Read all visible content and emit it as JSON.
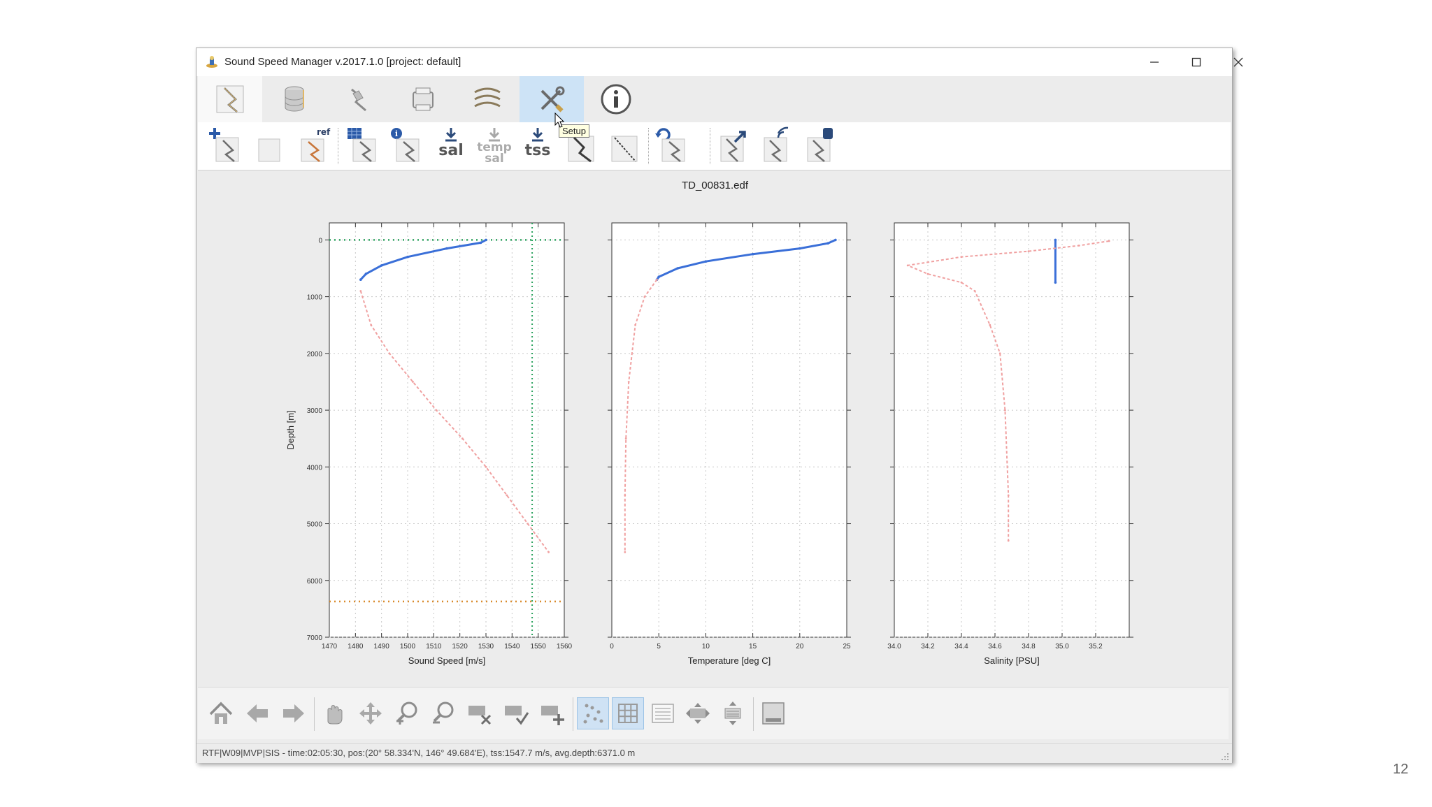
{
  "window": {
    "title": "Sound Speed Manager v.2017.1.0 [project: default]",
    "controls": {
      "minimize": "–",
      "maximize": "☐",
      "close": "✕"
    }
  },
  "main_tabs": [
    {
      "icon": "profile-editor-icon",
      "state": "selected"
    },
    {
      "icon": "database-icon"
    },
    {
      "icon": "survey-data-icon"
    },
    {
      "icon": "server-icon"
    },
    {
      "icon": "refraction-monitor-icon"
    },
    {
      "icon": "setup-tools-icon",
      "state": "hover"
    },
    {
      "icon": "info-icon"
    }
  ],
  "tooltip": "Setup",
  "toolbar": {
    "ref_badge": "ref",
    "sal_label": "sal",
    "temp_sal_label": [
      "temp",
      "sal"
    ],
    "tss_label": "tss"
  },
  "plot": {
    "title": "TD_00831.edf",
    "depth_label": "Depth [m]",
    "depth_ticks": [
      "0",
      "1000",
      "2000",
      "3000",
      "4000",
      "5000",
      "6000",
      "7000"
    ],
    "depth_range": [
      -300,
      7000
    ],
    "panels": [
      {
        "xlabel": "Sound Speed [m/s]",
        "xlim": [
          1470,
          1560
        ],
        "ticks": [
          "1470",
          "1480",
          "1490",
          "1500",
          "1510",
          "1520",
          "1530",
          "1540",
          "1550",
          "1560"
        ]
      },
      {
        "xlabel": "Temperature [deg C]",
        "xlim": [
          0,
          25
        ],
        "ticks": [
          "0",
          "5",
          "10",
          "15",
          "20",
          "25"
        ]
      },
      {
        "xlabel": "Salinity [PSU]",
        "xlim": [
          34.0,
          35.4
        ],
        "ticks": [
          "34.0",
          "34.2",
          "34.4",
          "34.6",
          "34.8",
          "35.0",
          "35.2"
        ]
      }
    ],
    "colors": {
      "valid": "#3a6fd8",
      "flagged": "#f0a0a0",
      "tss_line": "#2ca25f",
      "seafloor_line": "#d98a2b"
    },
    "tss_value": 1547.7,
    "avg_depth": 6371.0
  },
  "chart_data": [
    {
      "type": "line",
      "xlabel": "Sound Speed [m/s]",
      "ylabel": "Depth [m]",
      "xlim": [
        1470,
        1560
      ],
      "ylim": [
        7000,
        -300
      ],
      "grid": true,
      "series": [
        {
          "values": [
            [
              1530,
              0
            ],
            [
              1528,
              50
            ],
            [
              1515,
              150
            ],
            [
              1500,
              300
            ],
            [
              1490,
              450
            ],
            [
              1484,
              600
            ],
            [
              1482,
              700
            ]
          ]
        },
        {
          "values": [
            [
              1482,
              900
            ],
            [
              1486,
              1500
            ],
            [
              1493,
              2000
            ],
            [
              1502,
              2500
            ],
            [
              1511,
              3000
            ],
            [
              1521,
              3500
            ],
            [
              1530,
              4000
            ],
            [
              1538,
              4500
            ],
            [
              1546,
              5000
            ],
            [
              1554,
              5500
            ]
          ]
        }
      ],
      "reference_lines": [
        {
          "orientation": "vertical",
          "value": 1547.7
        },
        {
          "orientation": "horizontal",
          "value": 0
        },
        {
          "orientation": "horizontal",
          "value": 6371.0
        }
      ]
    },
    {
      "type": "line",
      "xlabel": "Temperature [deg C]",
      "ylabel": "Depth [m]",
      "xlim": [
        0,
        25
      ],
      "ylim": [
        7000,
        -300
      ],
      "grid": true,
      "series": [
        {
          "values": [
            [
              23.8,
              0
            ],
            [
              23,
              60
            ],
            [
              20,
              150
            ],
            [
              15,
              250
            ],
            [
              10,
              380
            ],
            [
              7,
              500
            ],
            [
              5,
              650
            ],
            [
              4.8,
              700
            ]
          ]
        },
        {
          "values": [
            [
              4.8,
              700
            ],
            [
              3.5,
              1000
            ],
            [
              2.5,
              1500
            ],
            [
              1.8,
              2500
            ],
            [
              1.5,
              3500
            ],
            [
              1.4,
              4500
            ],
            [
              1.4,
              5500
            ]
          ]
        }
      ]
    },
    {
      "type": "line",
      "xlabel": "Salinity [PSU]",
      "ylabel": "Depth [m]",
      "xlim": [
        34.0,
        35.4
      ],
      "ylim": [
        7000,
        -300
      ],
      "grid": true,
      "series": [
        {
          "values": [
            [
              34.96,
              0
            ],
            [
              34.96,
              750
            ]
          ]
        },
        {
          "values": [
            [
              35.28,
              20
            ],
            [
              35.1,
              100
            ],
            [
              34.8,
              200
            ],
            [
              34.4,
              300
            ],
            [
              34.08,
              450
            ],
            [
              34.2,
              600
            ],
            [
              34.4,
              750
            ],
            [
              34.48,
              900
            ],
            [
              34.57,
              1500
            ],
            [
              34.63,
              2000
            ],
            [
              34.66,
              3000
            ],
            [
              34.68,
              4500
            ],
            [
              34.68,
              5300
            ]
          ]
        }
      ]
    }
  ],
  "status": {
    "text": "RTF|W09|MVP|SIS  -  time:02:05:30, pos:(20° 58.334'N, 146° 49.684'E),  tss:1547.7 m/s,  avg.depth:6371.0 m"
  },
  "page_number": "12"
}
